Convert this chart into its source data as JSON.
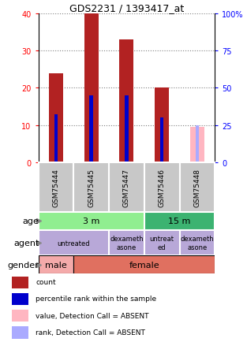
{
  "title": "GDS2231 / 1393417_at",
  "samples": [
    "GSM75444",
    "GSM75445",
    "GSM75447",
    "GSM75446",
    "GSM75448"
  ],
  "count_values": [
    24,
    40,
    33,
    20,
    0
  ],
  "percentile_values": [
    13,
    18,
    18,
    12,
    0
  ],
  "absent_value": [
    0,
    0,
    0,
    0,
    9.5
  ],
  "absent_rank_pct": [
    0,
    0,
    0,
    0,
    25
  ],
  "detection_absent": [
    false,
    false,
    false,
    false,
    true
  ],
  "ylim_left": [
    0,
    40
  ],
  "ylim_right": [
    0,
    100
  ],
  "age_groups": [
    {
      "label": "3 m",
      "cols": [
        0,
        1,
        2
      ],
      "color": "#90EE90"
    },
    {
      "label": "15 m",
      "cols": [
        3,
        4
      ],
      "color": "#3CB371"
    }
  ],
  "agent_groups": [
    {
      "label": "untreated",
      "cols": [
        0,
        1
      ],
      "color": "#B8A8D8"
    },
    {
      "label": "dexameth\nasone",
      "cols": [
        2
      ],
      "color": "#B8A8D8"
    },
    {
      "label": "untreat\ned",
      "cols": [
        3
      ],
      "color": "#B8A8D8"
    },
    {
      "label": "dexameth\nasone",
      "cols": [
        4
      ],
      "color": "#B8A8D8"
    }
  ],
  "gender_groups": [
    {
      "label": "male",
      "cols": [
        0
      ],
      "color": "#F4AAAA"
    },
    {
      "label": "female",
      "cols": [
        1,
        2,
        3,
        4
      ],
      "color": "#E07060"
    }
  ],
  "bar_color_present": "#B22222",
  "bar_color_absent": "#FFB6C1",
  "rank_color_present": "#0000CC",
  "rank_color_absent": "#AAAAFF",
  "sample_bg_color": "#C8C8C8",
  "bar_width": 0.4,
  "rank_bar_width": 0.1,
  "left_labels": [
    "age",
    "agent",
    "gender"
  ],
  "legend_items": [
    {
      "color": "#B22222",
      "label": "count"
    },
    {
      "color": "#0000CC",
      "label": "percentile rank within the sample"
    },
    {
      "color": "#FFB6C1",
      "label": "value, Detection Call = ABSENT"
    },
    {
      "color": "#AAAAFF",
      "label": "rank, Detection Call = ABSENT"
    }
  ]
}
